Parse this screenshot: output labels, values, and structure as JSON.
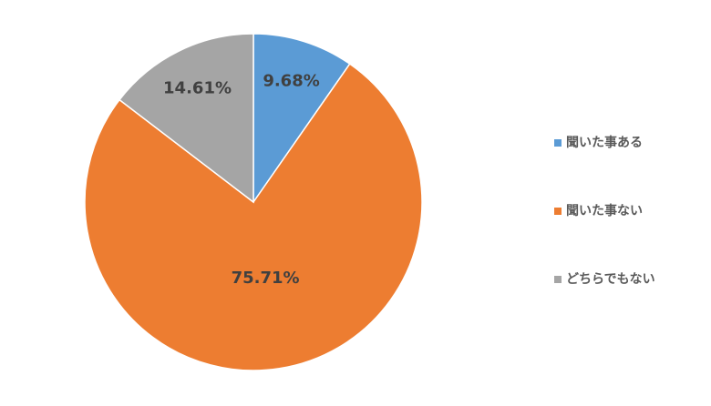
{
  "chart_data": {
    "type": "pie",
    "categories": [
      "聞いた事ある",
      "聞いた事ない",
      "どちらでもない"
    ],
    "values": [
      9.68,
      75.71,
      14.61
    ],
    "value_labels": [
      "9.68%",
      "75.71%",
      "14.61%"
    ],
    "colors": [
      "#5b9bd5",
      "#ed7d31",
      "#a5a5a5"
    ],
    "legend": "right"
  }
}
